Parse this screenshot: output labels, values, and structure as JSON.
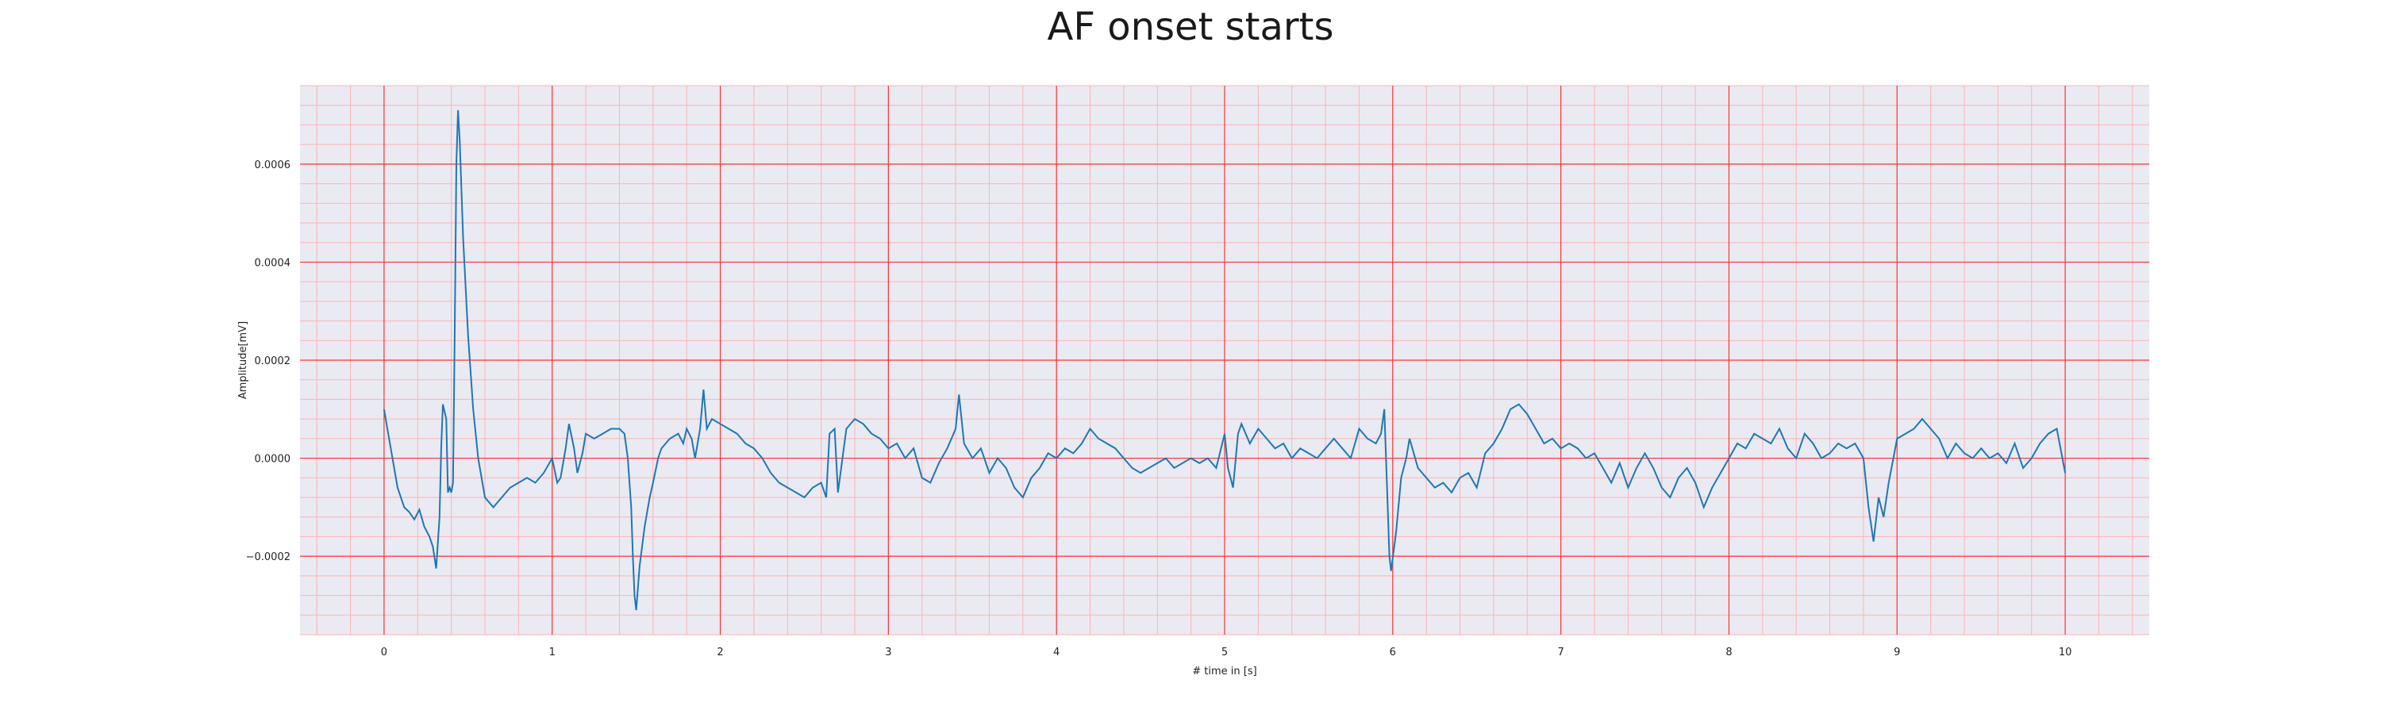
{
  "chart_data": {
    "type": "line",
    "title": "AF onset starts",
    "xlabel": "# time in [s]",
    "ylabel": "Amplitude[mV]",
    "xlim": [
      -0.5,
      10.5
    ],
    "ylim": [
      -0.00036,
      0.00076
    ],
    "xticks": [
      "0",
      "1",
      "2",
      "3",
      "4",
      "5",
      "6",
      "7",
      "8",
      "9",
      "10"
    ],
    "yticks": [
      "−0.0002",
      "0.0000",
      "0.0002",
      "0.0004",
      "0.0006"
    ],
    "grid": true,
    "colors": {
      "background": "#eaeaf2",
      "major_grid": "#ff3333",
      "minor_grid": "#ffb3b3",
      "line": "#1f77b4"
    },
    "series": [
      {
        "values": [
          [
            0.0,
            0.0001
          ],
          [
            0.02,
            6e-05
          ],
          [
            0.05,
            0.0
          ],
          [
            0.08,
            -6e-05
          ],
          [
            0.12,
            -0.0001
          ],
          [
            0.15,
            -0.00011
          ],
          [
            0.18,
            -0.000125
          ],
          [
            0.21,
            -0.000105
          ],
          [
            0.24,
            -0.00014
          ],
          [
            0.27,
            -0.00016
          ],
          [
            0.29,
            -0.00018
          ],
          [
            0.31,
            -0.000225
          ],
          [
            0.33,
            -0.00012
          ],
          [
            0.34,
            2e-05
          ],
          [
            0.35,
            0.00011
          ],
          [
            0.37,
            8e-05
          ],
          [
            0.38,
            -7e-05
          ],
          [
            0.39,
            -6e-05
          ],
          [
            0.4,
            -7e-05
          ],
          [
            0.41,
            -5e-05
          ],
          [
            0.42,
            0.00025
          ],
          [
            0.43,
            0.0006
          ],
          [
            0.44,
            0.00071
          ],
          [
            0.45,
            0.00065
          ],
          [
            0.47,
            0.00045
          ],
          [
            0.5,
            0.00025
          ],
          [
            0.53,
            0.0001
          ],
          [
            0.56,
            0.0
          ],
          [
            0.6,
            -8e-05
          ],
          [
            0.65,
            -0.0001
          ],
          [
            0.7,
            -8e-05
          ],
          [
            0.75,
            -6e-05
          ],
          [
            0.8,
            -5e-05
          ],
          [
            0.85,
            -4e-05
          ],
          [
            0.9,
            -5e-05
          ],
          [
            0.95,
            -3e-05
          ],
          [
            1.0,
            0.0
          ],
          [
            1.03,
            -5e-05
          ],
          [
            1.05,
            -4e-05
          ],
          [
            1.08,
            2e-05
          ],
          [
            1.1,
            7e-05
          ],
          [
            1.13,
            2e-05
          ],
          [
            1.15,
            -3e-05
          ],
          [
            1.18,
            1e-05
          ],
          [
            1.2,
            5e-05
          ],
          [
            1.25,
            4e-05
          ],
          [
            1.3,
            5e-05
          ],
          [
            1.35,
            6e-05
          ],
          [
            1.4,
            6e-05
          ],
          [
            1.43,
            5e-05
          ],
          [
            1.45,
            0.0
          ],
          [
            1.47,
            -0.0001
          ],
          [
            1.48,
            -0.0002
          ],
          [
            1.49,
            -0.00028
          ],
          [
            1.5,
            -0.00031
          ],
          [
            1.52,
            -0.00022
          ],
          [
            1.55,
            -0.00014
          ],
          [
            1.58,
            -8e-05
          ],
          [
            1.6,
            -5e-05
          ],
          [
            1.63,
            0.0
          ],
          [
            1.65,
            2e-05
          ],
          [
            1.7,
            4e-05
          ],
          [
            1.75,
            5e-05
          ],
          [
            1.78,
            3e-05
          ],
          [
            1.8,
            6e-05
          ],
          [
            1.83,
            4e-05
          ],
          [
            1.85,
            0.0
          ],
          [
            1.88,
            6e-05
          ],
          [
            1.9,
            0.00014
          ],
          [
            1.92,
            6e-05
          ],
          [
            1.95,
            8e-05
          ],
          [
            2.0,
            7e-05
          ],
          [
            2.05,
            6e-05
          ],
          [
            2.1,
            5e-05
          ],
          [
            2.15,
            3e-05
          ],
          [
            2.2,
            2e-05
          ],
          [
            2.25,
            0.0
          ],
          [
            2.3,
            -3e-05
          ],
          [
            2.35,
            -5e-05
          ],
          [
            2.4,
            -6e-05
          ],
          [
            2.45,
            -7e-05
          ],
          [
            2.5,
            -8e-05
          ],
          [
            2.55,
            -6e-05
          ],
          [
            2.6,
            -5e-05
          ],
          [
            2.63,
            -8e-05
          ],
          [
            2.65,
            5e-05
          ],
          [
            2.68,
            6e-05
          ],
          [
            2.7,
            -7e-05
          ],
          [
            2.75,
            6e-05
          ],
          [
            2.8,
            8e-05
          ],
          [
            2.85,
            7e-05
          ],
          [
            2.9,
            5e-05
          ],
          [
            2.95,
            4e-05
          ],
          [
            3.0,
            2e-05
          ],
          [
            3.05,
            3e-05
          ],
          [
            3.1,
            0.0
          ],
          [
            3.15,
            2e-05
          ],
          [
            3.2,
            -4e-05
          ],
          [
            3.25,
            -5e-05
          ],
          [
            3.3,
            -1e-05
          ],
          [
            3.35,
            2e-05
          ],
          [
            3.4,
            6e-05
          ],
          [
            3.42,
            0.00013
          ],
          [
            3.45,
            3e-05
          ],
          [
            3.5,
            0.0
          ],
          [
            3.55,
            2e-05
          ],
          [
            3.6,
            -3e-05
          ],
          [
            3.65,
            0.0
          ],
          [
            3.7,
            -2e-05
          ],
          [
            3.75,
            -6e-05
          ],
          [
            3.8,
            -8e-05
          ],
          [
            3.85,
            -4e-05
          ],
          [
            3.9,
            -2e-05
          ],
          [
            3.95,
            1e-05
          ],
          [
            4.0,
            0.0
          ],
          [
            4.05,
            2e-05
          ],
          [
            4.1,
            1e-05
          ],
          [
            4.15,
            3e-05
          ],
          [
            4.2,
            6e-05
          ],
          [
            4.25,
            4e-05
          ],
          [
            4.3,
            3e-05
          ],
          [
            4.35,
            2e-05
          ],
          [
            4.4,
            0.0
          ],
          [
            4.45,
            -2e-05
          ],
          [
            4.5,
            -3e-05
          ],
          [
            4.55,
            -2e-05
          ],
          [
            4.6,
            -1e-05
          ],
          [
            4.65,
            0.0
          ],
          [
            4.7,
            -2e-05
          ],
          [
            4.75,
            -1e-05
          ],
          [
            4.8,
            0.0
          ],
          [
            4.85,
            -1e-05
          ],
          [
            4.9,
            0.0
          ],
          [
            4.95,
            -2e-05
          ],
          [
            5.0,
            5e-05
          ],
          [
            5.02,
            -2e-05
          ],
          [
            5.05,
            -6e-05
          ],
          [
            5.08,
            5e-05
          ],
          [
            5.1,
            7e-05
          ],
          [
            5.15,
            3e-05
          ],
          [
            5.2,
            6e-05
          ],
          [
            5.25,
            4e-05
          ],
          [
            5.3,
            2e-05
          ],
          [
            5.35,
            3e-05
          ],
          [
            5.4,
            0.0
          ],
          [
            5.45,
            2e-05
          ],
          [
            5.5,
            1e-05
          ],
          [
            5.55,
            0.0
          ],
          [
            5.6,
            2e-05
          ],
          [
            5.65,
            4e-05
          ],
          [
            5.7,
            2e-05
          ],
          [
            5.75,
            0.0
          ],
          [
            5.8,
            6e-05
          ],
          [
            5.85,
            4e-05
          ],
          [
            5.9,
            3e-05
          ],
          [
            5.93,
            5e-05
          ],
          [
            5.95,
            0.0001
          ],
          [
            5.97,
            -0.0001
          ],
          [
            5.98,
            -0.0002
          ],
          [
            5.99,
            -0.00023
          ],
          [
            6.02,
            -0.00015
          ],
          [
            6.05,
            -4e-05
          ],
          [
            6.08,
            0.0
          ],
          [
            6.1,
            4e-05
          ],
          [
            6.15,
            -2e-05
          ],
          [
            6.2,
            -4e-05
          ],
          [
            6.25,
            -6e-05
          ],
          [
            6.3,
            -5e-05
          ],
          [
            6.35,
            -7e-05
          ],
          [
            6.4,
            -4e-05
          ],
          [
            6.45,
            -3e-05
          ],
          [
            6.5,
            -6e-05
          ],
          [
            6.55,
            1e-05
          ],
          [
            6.6,
            3e-05
          ],
          [
            6.65,
            6e-05
          ],
          [
            6.7,
            0.0001
          ],
          [
            6.75,
            0.00011
          ],
          [
            6.8,
            9e-05
          ],
          [
            6.85,
            6e-05
          ],
          [
            6.9,
            3e-05
          ],
          [
            6.95,
            4e-05
          ],
          [
            7.0,
            2e-05
          ],
          [
            7.05,
            3e-05
          ],
          [
            7.1,
            2e-05
          ],
          [
            7.15,
            0.0
          ],
          [
            7.2,
            1e-05
          ],
          [
            7.25,
            -2e-05
          ],
          [
            7.3,
            -5e-05
          ],
          [
            7.35,
            -1e-05
          ],
          [
            7.4,
            -6e-05
          ],
          [
            7.45,
            -2e-05
          ],
          [
            7.5,
            1e-05
          ],
          [
            7.55,
            -2e-05
          ],
          [
            7.6,
            -6e-05
          ],
          [
            7.65,
            -8e-05
          ],
          [
            7.7,
            -4e-05
          ],
          [
            7.75,
            -2e-05
          ],
          [
            7.8,
            -5e-05
          ],
          [
            7.85,
            -0.0001
          ],
          [
            7.9,
            -6e-05
          ],
          [
            7.95,
            -3e-05
          ],
          [
            8.0,
            0.0
          ],
          [
            8.05,
            3e-05
          ],
          [
            8.1,
            2e-05
          ],
          [
            8.15,
            5e-05
          ],
          [
            8.2,
            4e-05
          ],
          [
            8.25,
            3e-05
          ],
          [
            8.3,
            6e-05
          ],
          [
            8.35,
            2e-05
          ],
          [
            8.4,
            0.0
          ],
          [
            8.45,
            5e-05
          ],
          [
            8.5,
            3e-05
          ],
          [
            8.55,
            0.0
          ],
          [
            8.6,
            1e-05
          ],
          [
            8.65,
            3e-05
          ],
          [
            8.7,
            2e-05
          ],
          [
            8.75,
            3e-05
          ],
          [
            8.8,
            0.0
          ],
          [
            8.83,
            -0.0001
          ],
          [
            8.86,
            -0.00017
          ],
          [
            8.89,
            -8e-05
          ],
          [
            8.92,
            -0.00012
          ],
          [
            8.95,
            -5e-05
          ],
          [
            9.0,
            4e-05
          ],
          [
            9.05,
            5e-05
          ],
          [
            9.1,
            6e-05
          ],
          [
            9.15,
            8e-05
          ],
          [
            9.2,
            6e-05
          ],
          [
            9.25,
            4e-05
          ],
          [
            9.3,
            0.0
          ],
          [
            9.35,
            3e-05
          ],
          [
            9.4,
            1e-05
          ],
          [
            9.45,
            0.0
          ],
          [
            9.5,
            2e-05
          ],
          [
            9.55,
            0.0
          ],
          [
            9.6,
            1e-05
          ],
          [
            9.65,
            -1e-05
          ],
          [
            9.7,
            3e-05
          ],
          [
            9.75,
            -2e-05
          ],
          [
            9.8,
            0.0
          ],
          [
            9.85,
            3e-05
          ],
          [
            9.9,
            5e-05
          ],
          [
            9.95,
            6e-05
          ],
          [
            10.0,
            -3e-05
          ]
        ]
      }
    ]
  }
}
